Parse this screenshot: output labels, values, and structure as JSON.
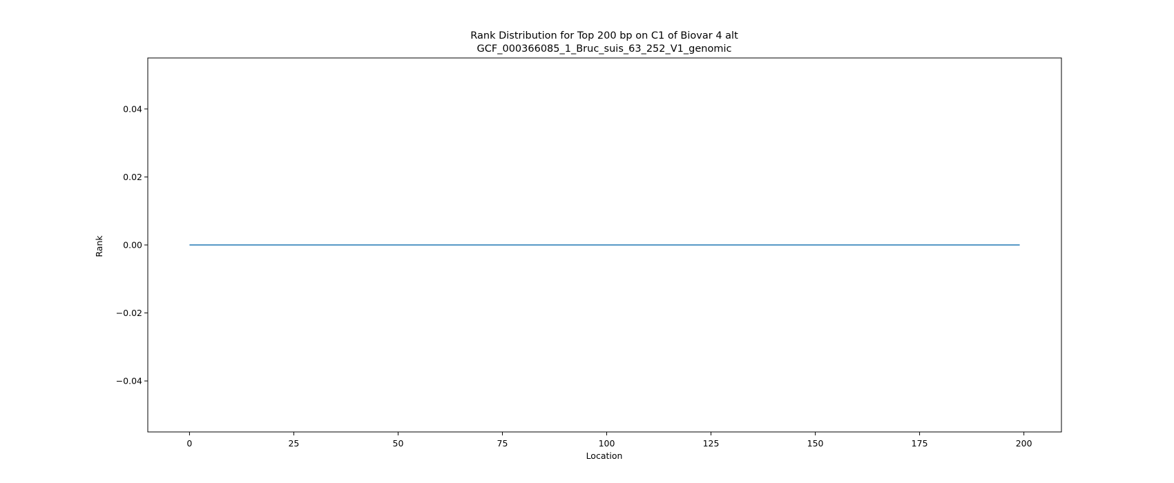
{
  "chart_data": {
    "type": "line",
    "title": "Rank Distribution for Top 200 bp on C1 of Biovar 4 alt",
    "subtitle": "GCF_000366085_1_Bruc_suis_63_252_V1_genomic",
    "xlabel": "Location",
    "ylabel": "Rank",
    "xlim": [
      -10,
      209
    ],
    "ylim": [
      -0.055,
      0.055
    ],
    "x_ticks": [
      0,
      25,
      50,
      75,
      100,
      125,
      150,
      175,
      200
    ],
    "x_tick_labels": [
      "0",
      "25",
      "50",
      "75",
      "100",
      "125",
      "150",
      "175",
      "200"
    ],
    "y_ticks": [
      -0.04,
      -0.02,
      0.0,
      0.02,
      0.04
    ],
    "y_tick_labels": [
      "−0.04",
      "−0.02",
      "0.00",
      "0.02",
      "0.04"
    ],
    "grid": false,
    "legend": false,
    "series": [
      {
        "color": "#1f77b4",
        "x": [
          0,
          199
        ],
        "y": [
          0,
          0
        ]
      }
    ]
  }
}
